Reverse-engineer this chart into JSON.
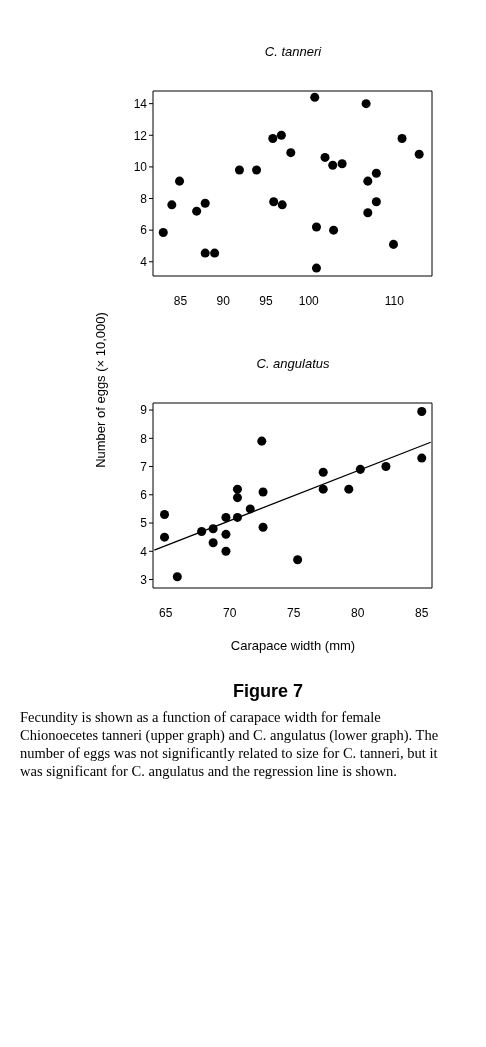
{
  "chart_data": [
    {
      "type": "scatter",
      "title": "C. tanneri",
      "ylabel": "Number of eggs (× 10,000)",
      "marker": "circle",
      "xlim": [
        81.8,
        114.4
      ],
      "xticks": [
        85,
        90,
        95,
        100,
        110
      ],
      "ylim": [
        3.1,
        14.8
      ],
      "yticks": [
        4,
        6,
        8,
        10,
        12,
        14
      ],
      "series": [
        {
          "color": "#000000",
          "x": [
            83.0,
            84.0,
            84.9,
            86.9,
            87.9,
            87.9,
            89.0,
            91.9,
            93.9,
            95.8,
            96.8,
            97.9,
            95.9,
            96.9,
            100.7,
            100.9,
            100.9,
            101.9,
            102.8,
            103.9,
            102.9,
            106.7,
            106.9,
            107.9,
            106.9,
            107.9,
            109.9,
            110.9,
            112.9
          ],
          "values": [
            5.85,
            7.6,
            9.1,
            7.2,
            7.7,
            4.55,
            4.55,
            9.8,
            9.8,
            11.8,
            12.0,
            10.9,
            7.8,
            7.6,
            14.4,
            6.2,
            3.6,
            10.6,
            10.1,
            10.2,
            6.0,
            14.0,
            9.1,
            9.6,
            7.1,
            7.8,
            5.1,
            11.8,
            10.8
          ]
        }
      ]
    },
    {
      "type": "scatter",
      "title": "C. angulatus",
      "xlabel": "Carapace width (mm)",
      "marker": "circle",
      "xlim": [
        64,
        85.8
      ],
      "xticks": [
        65,
        70,
        75,
        80,
        85
      ],
      "ylim": [
        2.7,
        9.25
      ],
      "yticks": [
        3,
        4,
        5,
        6,
        7,
        8,
        9
      ],
      "annotations": [
        "Figure 7",
        "Fecundity is shown as a function of carapace width for female Chionoecetes tanneri (upper graph) and C. angulatus (lower graph). The number of eggs was not significantly related to size for C. tanneri, but it was significant for C. angulatus and the regression line is shown."
      ],
      "series": [
        {
          "color": "#000000",
          "x": [
            64.9,
            64.9,
            65.9,
            67.8,
            68.7,
            68.7,
            69.7,
            69.7,
            69.7,
            70.6,
            70.6,
            70.6,
            71.6,
            72.5,
            72.6,
            72.6,
            75.3,
            77.3,
            77.3,
            79.3,
            80.2,
            82.2,
            85.0,
            85.0
          ],
          "values": [
            5.3,
            4.5,
            3.1,
            4.7,
            4.8,
            4.3,
            5.2,
            4.6,
            4.0,
            6.2,
            5.9,
            5.2,
            5.5,
            7.9,
            6.1,
            4.85,
            3.7,
            6.8,
            6.2,
            6.2,
            6.9,
            7.0,
            8.95,
            7.3
          ]
        },
        {
          "type": "line",
          "color": "#000000",
          "marker": "none",
          "line_style": "solid",
          "x": [
            64.1,
            85.7
          ],
          "values": [
            4.04,
            7.86
          ]
        }
      ]
    }
  ]
}
